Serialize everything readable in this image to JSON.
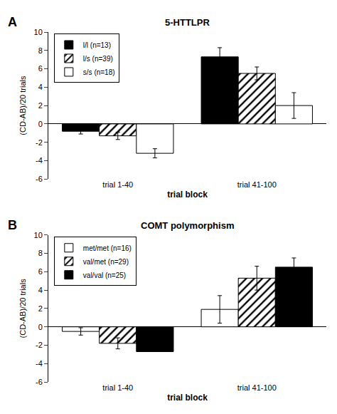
{
  "chart_data": [
    {
      "type": "bar",
      "title": "5-HTTLPR",
      "annotations": [
        "A"
      ],
      "xlabel": "trial block",
      "ylabel": "(CD-AB)/20 trials",
      "categories": [
        "trial 1-40",
        "trial 41-100"
      ],
      "series": [
        {
          "name": "l/l (n=13)",
          "color": "black",
          "values": [
            -0.8,
            7.3
          ],
          "errors": [
            0.3,
            1.0
          ]
        },
        {
          "name": "l/s (n=39)",
          "color": "white",
          "marker": "hatch",
          "values": [
            -1.3,
            5.5
          ],
          "errors": [
            0.4,
            0.7
          ]
        },
        {
          "name": "s/s (n=18)",
          "color": "white",
          "values": [
            -3.2,
            2.0
          ],
          "errors": [
            0.5,
            1.4
          ]
        }
      ],
      "ylim": [
        -6,
        10
      ],
      "yticks": [
        -6,
        -4,
        -2,
        0,
        2,
        4,
        6,
        8,
        10
      ],
      "legend": "upper left",
      "grid": false
    },
    {
      "type": "bar",
      "title": "COMT polymorphism",
      "annotations": [
        "B"
      ],
      "xlabel": "trial block",
      "ylabel": "(CD-AB)/20 trials",
      "categories": [
        "trial 1-40",
        "trial 41-100"
      ],
      "series": [
        {
          "name": "met/met (n=16)",
          "color": "white",
          "values": [
            -0.5,
            1.9
          ],
          "errors": [
            0.4,
            1.5
          ]
        },
        {
          "name": "val/met (n=29)",
          "color": "white",
          "marker": "hatch",
          "values": [
            -1.8,
            5.3
          ],
          "errors": [
            0.6,
            1.3
          ]
        },
        {
          "name": "val/val (n=25)",
          "color": "black",
          "values": [
            -2.7,
            6.5
          ],
          "errors": [
            0.0,
            1.0
          ]
        }
      ],
      "ylim": [
        -6,
        10
      ],
      "yticks": [
        -6,
        -4,
        -2,
        0,
        2,
        4,
        6,
        8,
        10
      ],
      "legend": "upper left",
      "grid": false
    }
  ]
}
